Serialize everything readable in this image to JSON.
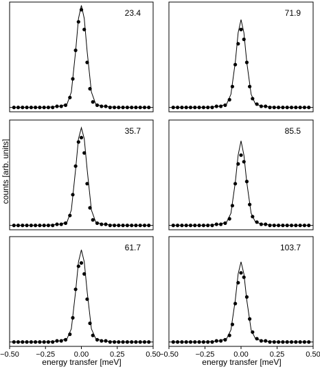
{
  "chart_data": {
    "type": "scatter",
    "ylabel": "counts [arb. units]",
    "xlabel": "energy transfer [meV]",
    "xlim": [
      -0.5,
      0.5
    ],
    "ylim": [
      0,
      1.0
    ],
    "x_ticks": [
      "−0.50",
      "−0.25",
      "0.00",
      "0.25",
      "0.50"
    ],
    "grid": false,
    "series_style": {
      "points": "filled-circles",
      "fit": "solid-line"
    },
    "panels": [
      {
        "label": "23.4",
        "points": [
          [
            -0.47,
            0.04
          ],
          [
            -0.44,
            0.04
          ],
          [
            -0.41,
            0.04
          ],
          [
            -0.38,
            0.04
          ],
          [
            -0.35,
            0.04
          ],
          [
            -0.32,
            0.04
          ],
          [
            -0.29,
            0.04
          ],
          [
            -0.26,
            0.04
          ],
          [
            -0.23,
            0.04
          ],
          [
            -0.2,
            0.04
          ],
          [
            -0.17,
            0.05
          ],
          [
            -0.14,
            0.05
          ],
          [
            -0.11,
            0.06
          ],
          [
            -0.08,
            0.13
          ],
          [
            -0.06,
            0.3
          ],
          [
            -0.04,
            0.56
          ],
          [
            -0.02,
            0.82
          ],
          [
            0.0,
            0.93
          ],
          [
            0.02,
            0.75
          ],
          [
            0.04,
            0.45
          ],
          [
            0.06,
            0.21
          ],
          [
            0.08,
            0.09
          ],
          [
            0.11,
            0.06
          ],
          [
            0.14,
            0.05
          ],
          [
            0.17,
            0.05
          ],
          [
            0.2,
            0.04
          ],
          [
            0.23,
            0.04
          ],
          [
            0.26,
            0.04
          ],
          [
            0.29,
            0.04
          ],
          [
            0.32,
            0.04
          ],
          [
            0.35,
            0.04
          ],
          [
            0.38,
            0.04
          ],
          [
            0.41,
            0.04
          ],
          [
            0.44,
            0.04
          ],
          [
            0.47,
            0.04
          ]
        ],
        "fit": [
          [
            -0.5,
            0.04
          ],
          [
            -0.25,
            0.04
          ],
          [
            -0.15,
            0.05
          ],
          [
            -0.1,
            0.07
          ],
          [
            -0.07,
            0.18
          ],
          [
            -0.04,
            0.55
          ],
          [
            -0.02,
            0.85
          ],
          [
            0.0,
            0.97
          ],
          [
            0.02,
            0.85
          ],
          [
            0.04,
            0.55
          ],
          [
            0.07,
            0.18
          ],
          [
            0.1,
            0.07
          ],
          [
            0.15,
            0.05
          ],
          [
            0.25,
            0.04
          ],
          [
            0.5,
            0.04
          ]
        ]
      },
      {
        "label": "71.9",
        "points": [
          [
            -0.47,
            0.04
          ],
          [
            -0.44,
            0.04
          ],
          [
            -0.41,
            0.04
          ],
          [
            -0.38,
            0.04
          ],
          [
            -0.35,
            0.04
          ],
          [
            -0.32,
            0.04
          ],
          [
            -0.29,
            0.04
          ],
          [
            -0.26,
            0.04
          ],
          [
            -0.23,
            0.04
          ],
          [
            -0.2,
            0.04
          ],
          [
            -0.17,
            0.05
          ],
          [
            -0.14,
            0.05
          ],
          [
            -0.11,
            0.06
          ],
          [
            -0.08,
            0.11
          ],
          [
            -0.06,
            0.23
          ],
          [
            -0.04,
            0.43
          ],
          [
            -0.02,
            0.62
          ],
          [
            0.0,
            0.75
          ],
          [
            0.02,
            0.66
          ],
          [
            0.04,
            0.45
          ],
          [
            0.06,
            0.23
          ],
          [
            0.08,
            0.12
          ],
          [
            0.11,
            0.07
          ],
          [
            0.14,
            0.05
          ],
          [
            0.17,
            0.05
          ],
          [
            0.2,
            0.04
          ],
          [
            0.23,
            0.04
          ],
          [
            0.26,
            0.04
          ],
          [
            0.29,
            0.04
          ],
          [
            0.32,
            0.04
          ],
          [
            0.35,
            0.04
          ],
          [
            0.38,
            0.04
          ],
          [
            0.41,
            0.04
          ],
          [
            0.44,
            0.04
          ],
          [
            0.47,
            0.04
          ]
        ],
        "fit": [
          [
            -0.5,
            0.04
          ],
          [
            -0.25,
            0.04
          ],
          [
            -0.15,
            0.05
          ],
          [
            -0.1,
            0.07
          ],
          [
            -0.07,
            0.16
          ],
          [
            -0.04,
            0.45
          ],
          [
            -0.02,
            0.72
          ],
          [
            0.0,
            0.84
          ],
          [
            0.02,
            0.72
          ],
          [
            0.04,
            0.45
          ],
          [
            0.07,
            0.16
          ],
          [
            0.1,
            0.07
          ],
          [
            0.15,
            0.05
          ],
          [
            0.25,
            0.04
          ],
          [
            0.5,
            0.04
          ]
        ]
      },
      {
        "label": "35.7",
        "points": [
          [
            -0.47,
            0.04
          ],
          [
            -0.44,
            0.04
          ],
          [
            -0.41,
            0.04
          ],
          [
            -0.38,
            0.04
          ],
          [
            -0.35,
            0.04
          ],
          [
            -0.32,
            0.04
          ],
          [
            -0.29,
            0.04
          ],
          [
            -0.26,
            0.04
          ],
          [
            -0.23,
            0.04
          ],
          [
            -0.2,
            0.04
          ],
          [
            -0.17,
            0.05
          ],
          [
            -0.14,
            0.05
          ],
          [
            -0.11,
            0.06
          ],
          [
            -0.08,
            0.13
          ],
          [
            -0.06,
            0.32
          ],
          [
            -0.04,
            0.58
          ],
          [
            -0.02,
            0.8
          ],
          [
            0.0,
            0.84
          ],
          [
            0.02,
            0.7
          ],
          [
            0.04,
            0.42
          ],
          [
            0.06,
            0.2
          ],
          [
            0.08,
            0.09
          ],
          [
            0.11,
            0.06
          ],
          [
            0.14,
            0.05
          ],
          [
            0.17,
            0.05
          ],
          [
            0.2,
            0.04
          ],
          [
            0.23,
            0.04
          ],
          [
            0.26,
            0.04
          ],
          [
            0.29,
            0.04
          ],
          [
            0.32,
            0.04
          ],
          [
            0.35,
            0.04
          ],
          [
            0.38,
            0.04
          ],
          [
            0.41,
            0.04
          ],
          [
            0.44,
            0.04
          ],
          [
            0.47,
            0.04
          ]
        ],
        "fit": [
          [
            -0.5,
            0.04
          ],
          [
            -0.25,
            0.04
          ],
          [
            -0.15,
            0.05
          ],
          [
            -0.1,
            0.07
          ],
          [
            -0.07,
            0.18
          ],
          [
            -0.04,
            0.55
          ],
          [
            -0.02,
            0.83
          ],
          [
            0.0,
            0.93
          ],
          [
            0.02,
            0.83
          ],
          [
            0.04,
            0.55
          ],
          [
            0.07,
            0.18
          ],
          [
            0.1,
            0.07
          ],
          [
            0.15,
            0.05
          ],
          [
            0.25,
            0.04
          ],
          [
            0.5,
            0.04
          ]
        ]
      },
      {
        "label": "85.5",
        "points": [
          [
            -0.47,
            0.04
          ],
          [
            -0.44,
            0.04
          ],
          [
            -0.41,
            0.04
          ],
          [
            -0.38,
            0.04
          ],
          [
            -0.35,
            0.04
          ],
          [
            -0.32,
            0.04
          ],
          [
            -0.29,
            0.04
          ],
          [
            -0.26,
            0.04
          ],
          [
            -0.23,
            0.04
          ],
          [
            -0.2,
            0.04
          ],
          [
            -0.17,
            0.05
          ],
          [
            -0.14,
            0.05
          ],
          [
            -0.11,
            0.06
          ],
          [
            -0.08,
            0.1
          ],
          [
            -0.06,
            0.22
          ],
          [
            -0.04,
            0.42
          ],
          [
            -0.02,
            0.6
          ],
          [
            0.0,
            0.68
          ],
          [
            0.02,
            0.62
          ],
          [
            0.04,
            0.44
          ],
          [
            0.06,
            0.23
          ],
          [
            0.08,
            0.12
          ],
          [
            0.11,
            0.07
          ],
          [
            0.14,
            0.05
          ],
          [
            0.17,
            0.05
          ],
          [
            0.2,
            0.04
          ],
          [
            0.23,
            0.04
          ],
          [
            0.26,
            0.04
          ],
          [
            0.29,
            0.04
          ],
          [
            0.32,
            0.04
          ],
          [
            0.35,
            0.04
          ],
          [
            0.38,
            0.04
          ],
          [
            0.41,
            0.04
          ],
          [
            0.44,
            0.04
          ],
          [
            0.47,
            0.04
          ]
        ],
        "fit": [
          [
            -0.5,
            0.04
          ],
          [
            -0.25,
            0.04
          ],
          [
            -0.15,
            0.05
          ],
          [
            -0.1,
            0.07
          ],
          [
            -0.07,
            0.15
          ],
          [
            -0.04,
            0.43
          ],
          [
            -0.02,
            0.68
          ],
          [
            0.0,
            0.81
          ],
          [
            0.02,
            0.68
          ],
          [
            0.04,
            0.43
          ],
          [
            0.07,
            0.15
          ],
          [
            0.1,
            0.07
          ],
          [
            0.15,
            0.05
          ],
          [
            0.25,
            0.04
          ],
          [
            0.5,
            0.04
          ]
        ]
      },
      {
        "label": "61.7",
        "points": [
          [
            -0.47,
            0.04
          ],
          [
            -0.44,
            0.04
          ],
          [
            -0.41,
            0.04
          ],
          [
            -0.38,
            0.04
          ],
          [
            -0.35,
            0.04
          ],
          [
            -0.32,
            0.04
          ],
          [
            -0.29,
            0.04
          ],
          [
            -0.26,
            0.04
          ],
          [
            -0.23,
            0.04
          ],
          [
            -0.2,
            0.04
          ],
          [
            -0.17,
            0.05
          ],
          [
            -0.14,
            0.05
          ],
          [
            -0.11,
            0.06
          ],
          [
            -0.08,
            0.11
          ],
          [
            -0.06,
            0.26
          ],
          [
            -0.04,
            0.52
          ],
          [
            -0.02,
            0.73
          ],
          [
            0.0,
            0.76
          ],
          [
            0.02,
            0.66
          ],
          [
            0.04,
            0.43
          ],
          [
            0.06,
            0.21
          ],
          [
            0.08,
            0.1
          ],
          [
            0.11,
            0.06
          ],
          [
            0.14,
            0.05
          ],
          [
            0.17,
            0.05
          ],
          [
            0.2,
            0.04
          ],
          [
            0.23,
            0.04
          ],
          [
            0.26,
            0.04
          ],
          [
            0.29,
            0.04
          ],
          [
            0.32,
            0.04
          ],
          [
            0.35,
            0.04
          ],
          [
            0.38,
            0.04
          ],
          [
            0.41,
            0.04
          ],
          [
            0.44,
            0.04
          ],
          [
            0.47,
            0.04
          ]
        ],
        "fit": [
          [
            -0.5,
            0.04
          ],
          [
            -0.25,
            0.04
          ],
          [
            -0.15,
            0.05
          ],
          [
            -0.1,
            0.07
          ],
          [
            -0.07,
            0.16
          ],
          [
            -0.04,
            0.5
          ],
          [
            -0.02,
            0.77
          ],
          [
            0.0,
            0.88
          ],
          [
            0.02,
            0.77
          ],
          [
            0.04,
            0.5
          ],
          [
            0.07,
            0.16
          ],
          [
            0.1,
            0.07
          ],
          [
            0.15,
            0.05
          ],
          [
            0.25,
            0.04
          ],
          [
            0.5,
            0.04
          ]
        ]
      },
      {
        "label": "103.7",
        "points": [
          [
            -0.47,
            0.04
          ],
          [
            -0.44,
            0.04
          ],
          [
            -0.41,
            0.04
          ],
          [
            -0.38,
            0.04
          ],
          [
            -0.35,
            0.04
          ],
          [
            -0.32,
            0.04
          ],
          [
            -0.29,
            0.04
          ],
          [
            -0.26,
            0.04
          ],
          [
            -0.23,
            0.04
          ],
          [
            -0.2,
            0.04
          ],
          [
            -0.17,
            0.05
          ],
          [
            -0.14,
            0.05
          ],
          [
            -0.11,
            0.06
          ],
          [
            -0.08,
            0.1
          ],
          [
            -0.06,
            0.2
          ],
          [
            -0.04,
            0.39
          ],
          [
            -0.02,
            0.58
          ],
          [
            0.0,
            0.67
          ],
          [
            0.02,
            0.63
          ],
          [
            0.04,
            0.45
          ],
          [
            0.06,
            0.25
          ],
          [
            0.08,
            0.13
          ],
          [
            0.11,
            0.07
          ],
          [
            0.14,
            0.05
          ],
          [
            0.17,
            0.05
          ],
          [
            0.2,
            0.04
          ],
          [
            0.23,
            0.04
          ],
          [
            0.26,
            0.04
          ],
          [
            0.29,
            0.04
          ],
          [
            0.32,
            0.04
          ],
          [
            0.35,
            0.04
          ],
          [
            0.38,
            0.04
          ],
          [
            0.41,
            0.04
          ],
          [
            0.44,
            0.04
          ],
          [
            0.47,
            0.04
          ]
        ],
        "fit": [
          [
            -0.5,
            0.04
          ],
          [
            -0.25,
            0.04
          ],
          [
            -0.15,
            0.05
          ],
          [
            -0.1,
            0.07
          ],
          [
            -0.07,
            0.15
          ],
          [
            -0.04,
            0.42
          ],
          [
            -0.02,
            0.66
          ],
          [
            0.0,
            0.77
          ],
          [
            0.02,
            0.66
          ],
          [
            0.04,
            0.42
          ],
          [
            0.07,
            0.15
          ],
          [
            0.1,
            0.07
          ],
          [
            0.15,
            0.05
          ],
          [
            0.25,
            0.04
          ],
          [
            0.5,
            0.04
          ]
        ]
      }
    ]
  }
}
